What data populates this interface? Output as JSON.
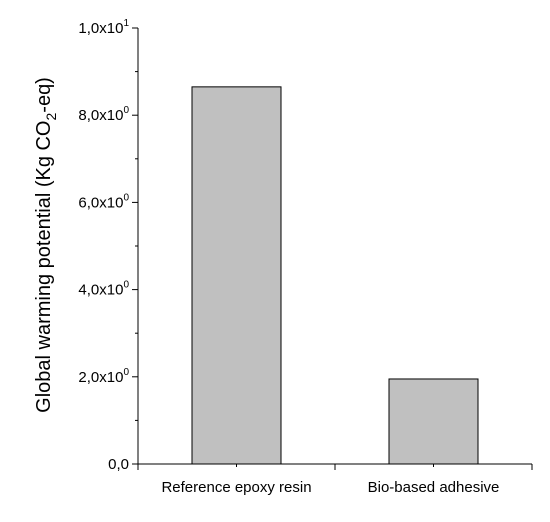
{
  "chart_data": {
    "type": "bar",
    "categories": [
      "Reference epoxy resin",
      "Bio-based adhesive"
    ],
    "values": [
      8.65,
      1.95
    ],
    "ylim": [
      0,
      10
    ],
    "yticks": [
      {
        "value": 0,
        "mantissa": "0,0",
        "exponent": ""
      },
      {
        "value": 2,
        "mantissa": "2,0x10",
        "exponent": "0"
      },
      {
        "value": 4,
        "mantissa": "4,0x10",
        "exponent": "0"
      },
      {
        "value": 6,
        "mantissa": "6,0x10",
        "exponent": "0"
      },
      {
        "value": 8,
        "mantissa": "8,0x10",
        "exponent": "0"
      },
      {
        "value": 10,
        "mantissa": "1,0x10",
        "exponent": "1"
      }
    ],
    "ylabel": {
      "prefix": "Global warming potential (Kg CO",
      "subscript": "2",
      "suffix": "-eq)"
    },
    "xlabel": "",
    "grid": false,
    "bar_color": "#c0c0c0"
  }
}
